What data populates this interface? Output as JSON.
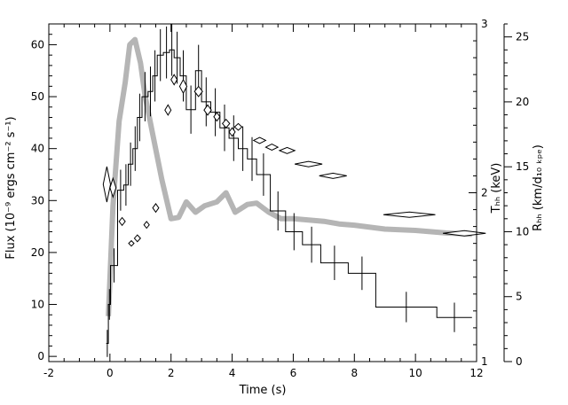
{
  "chart_data": {
    "type": "line",
    "title": "",
    "xlabel": "Time (s)",
    "ylabel": "Flux (10⁻⁹ ergs cm⁻² s⁻¹)",
    "ylabel_right_inner": "Tₕₕ (keV)",
    "ylabel_right_outer": "Rₕₕ (km/d₁₀ ₖₚₑ)",
    "xlim": [
      -2,
      12
    ],
    "ylim": [
      -1,
      64
    ],
    "xticks": [
      "-2",
      "0",
      "2",
      "4",
      "6",
      "8",
      "10",
      "12"
    ],
    "yticks": [
      "0",
      "10",
      "20",
      "30",
      "40",
      "50",
      "60"
    ],
    "t_axis": {
      "range": [
        1,
        3
      ],
      "ticks": [
        "1",
        "2",
        "3"
      ]
    },
    "r_axis": {
      "range": [
        0,
        26
      ],
      "ticks": [
        "0",
        "5",
        "10",
        "15",
        "20",
        "25"
      ]
    },
    "grid": false,
    "legend": "none",
    "colors": {
      "flux": "#000000",
      "radius_band": "#b5b5b5",
      "temperature": "#000000"
    },
    "series": [
      {
        "kind": "histogram",
        "axis": "left",
        "x": [
          -0.12,
          -0.05,
          0.02,
          0.25,
          0.45,
          0.6,
          0.75,
          0.9,
          1.05,
          1.25,
          1.4,
          1.55,
          1.75,
          1.95,
          2.1,
          2.3,
          2.5,
          2.8,
          3.0,
          3.3,
          3.6,
          3.9,
          4.2,
          4.5,
          4.8,
          5.25,
          5.75,
          6.3,
          6.9,
          7.8,
          8.7,
          10.7,
          11.85
        ],
        "y": [
          2.5,
          10,
          17.5,
          32,
          33,
          37,
          40,
          46,
          50,
          51,
          54,
          58,
          58.5,
          59,
          57.5,
          54,
          47.5,
          55,
          49,
          47,
          44,
          42,
          40,
          38,
          35,
          28,
          24,
          21.5,
          18,
          16,
          9.5,
          7.5
        ]
      },
      {
        "kind": "band",
        "axis": "right_outer",
        "x": [
          -0.05,
          0.1,
          0.3,
          0.5,
          0.65,
          0.82,
          1.0,
          1.15,
          1.4,
          1.7,
          2.0,
          2.25,
          2.5,
          2.8,
          3.1,
          3.5,
          3.8,
          4.1,
          4.5,
          4.8,
          5.2,
          5.6,
          6.0,
          6.5,
          7.0,
          7.5,
          8.0,
          9.0,
          10.0,
          11.0,
          11.85
        ],
        "y": [
          3.5,
          12,
          18.5,
          21.5,
          24.4,
          24.8,
          23,
          20.5,
          17.5,
          14,
          11,
          11.1,
          12.3,
          11.5,
          12,
          12.3,
          13,
          11.5,
          12.1,
          12.2,
          11.5,
          11,
          11,
          10.9,
          10.8,
          10.6,
          10.5,
          10.2,
          10.1,
          9.9,
          9.8
        ]
      },
      {
        "kind": "diamonds",
        "axis": "right_inner",
        "points": [
          [
            -0.1,
            2.05
          ],
          [
            0.1,
            2.03
          ],
          [
            0.4,
            1.83
          ],
          [
            0.7,
            1.7
          ],
          [
            0.9,
            1.73
          ],
          [
            1.2,
            1.81
          ],
          [
            1.5,
            1.91
          ],
          [
            1.9,
            2.49
          ],
          [
            2.1,
            2.67
          ],
          [
            2.4,
            2.63
          ],
          [
            2.9,
            2.6
          ],
          [
            3.2,
            2.49
          ],
          [
            3.5,
            2.45
          ],
          [
            3.8,
            2.41
          ],
          [
            4.0,
            2.36
          ],
          [
            4.2,
            2.39
          ],
          [
            4.9,
            2.31
          ],
          [
            5.3,
            2.27
          ],
          [
            5.8,
            2.25
          ],
          [
            6.5,
            2.17
          ],
          [
            7.3,
            2.1
          ],
          [
            9.8,
            1.87
          ],
          [
            11.6,
            1.76
          ]
        ],
        "xerr": [
          0.12,
          0.1,
          0.1,
          0.08,
          0.1,
          0.08,
          0.1,
          0.1,
          0.1,
          0.12,
          0.13,
          0.12,
          0.1,
          0.12,
          0.1,
          0.12,
          0.2,
          0.2,
          0.25,
          0.45,
          0.45,
          0.85,
          0.7
        ],
        "yerr": [
          0.105,
          0.055,
          0.023,
          0.016,
          0.02,
          0.02,
          0.025,
          0.03,
          0.03,
          0.04,
          0.03,
          0.03,
          0.025,
          0.025,
          0.025,
          0.02,
          0.018,
          0.018,
          0.018,
          0.016,
          0.014,
          0.01,
          0.016
        ]
      }
    ]
  }
}
